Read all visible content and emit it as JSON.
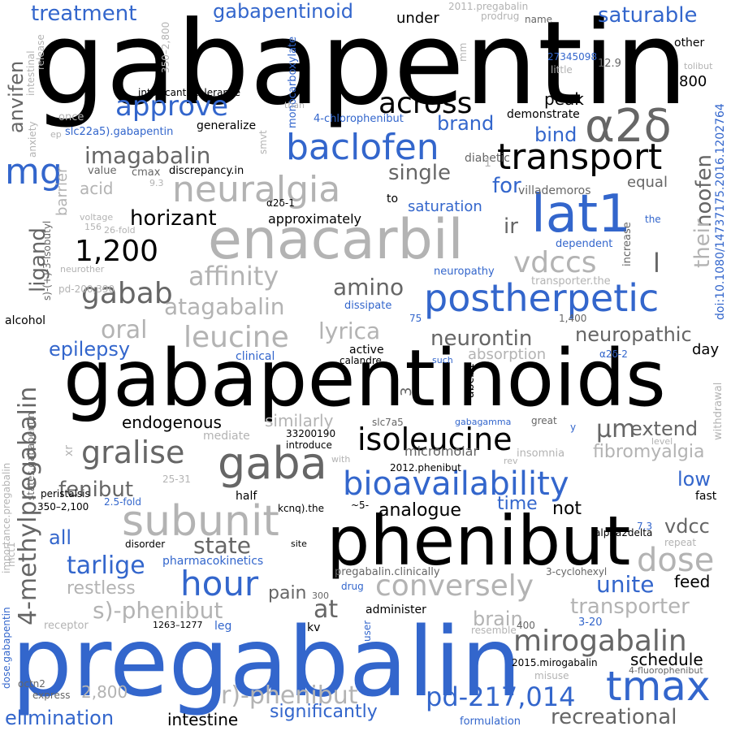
{
  "words": {
    "gabapentin": "gabapentin",
    "gabapentinoids": "gabapentinoids",
    "pregabalin": "pregabalin",
    "phenibut": "phenibut",
    "enacarbil": "enacarbil",
    "lat1": "lat1",
    "subunit": "subunit",
    "a2d": "α2δ",
    "baclofen": "baclofen",
    "transport": "transport",
    "neuralgia": "neuralgia",
    "postherpetic": "postherpetic",
    "bioavailability": "bioavailability",
    "tmax": "tmax",
    "gaba": "gaba",
    "hour": "hour",
    "isoleucine": "isoleucine",
    "mirogabalin": "mirogabalin",
    "dose": "dose",
    "gralise": "gralise",
    "conversely": "conversely",
    "pd217": "pd-217,014",
    "across": "across",
    "approve": "approve",
    "mg": "mg",
    "one200": "1,200",
    "vdccs": "vdccs",
    "gabab": "gabab",
    "leucine": "leucine",
    "affinity": "affinity",
    "atagabalin": "atagabalin",
    "imagabalin": "imagabalin",
    "horizant": "horizant",
    "lyrica": "lyrica",
    "oral": "oral",
    "neurontin": "neurontin",
    "neuropathic": "neuropathic",
    "amino": "amino",
    "fenibut": "fenibut",
    "tarlige": "tarlige",
    "state": "state",
    "sphenibut": "s)-phenibut",
    "rphenibut": "r)-phenibut",
    "transporter": "transporter",
    "unite": "unite",
    "recreational": "recreational",
    "elimination": "elimination",
    "significantly": "significantly",
    "intestine": "intestine",
    "treatment": "treatment",
    "gabapentinoid": "gabapentinoid",
    "saturable": "saturable",
    "brand": "brand",
    "bind": "bind",
    "single": "single",
    "for": "for",
    "ir": "ir",
    "l": "l",
    "epilepsy": "epilepsy",
    "endogenous": "endogenous",
    "um": "μm",
    "extend": "extend",
    "similarly": "similarly",
    "fibromyalgia": "fibromyalgia",
    "low": "low",
    "all": "all",
    "not": "not",
    "analogue": "analogue",
    "time": "time",
    "vdcc": "vdcc",
    "feed": "feed",
    "restless": "restless",
    "at": "at",
    "pain": "pain",
    "brain": "brain",
    "schedule": "schedule",
    "fourmethyl": "4-methylpregabalin",
    "ligand": "ligand",
    "anvifen": "anvifen",
    "noofen": "noofen",
    "their": "their",
    "acid": "acid",
    "barrier": "barrier",
    "micromolar": "micromolar",
    "twothousand": "2,800",
    "absorption": "absorption",
    "peak": "peak",
    "eighthundred": "800",
    "day": "day",
    "approximately": "approximately",
    "saturation": "saturation",
    "equal": "equal",
    "active": "active",
    "calandre": "calandre",
    "half": "half",
    "fast": "fast",
    "repeat": "repeat",
    "administer": "administer",
    "kv": "kv",
    "disorder": "disorder",
    "site": "site",
    "under": "under",
    "other": "other",
    "generalize": "generalize",
    "increase": "increase",
    "alcohol": "alcohol",
    "abcb1": "abcb1",
    "three": "3",
    "fourchloro": "4-chlorophenibut",
    "demonstrate": "demonstrate",
    "diabetic": "diabetic",
    "villademoros": "villademoros",
    "neuropathy": "neuropathy",
    "dependent": "dependent",
    "the1": "the",
    "dissipate": "dissipate",
    "clinical": "clinical",
    "such": "such",
    "a2d2": "α2δ-2",
    "a2d1": "α2δ-1",
    "gabagamma": "gabagamma",
    "great": "great",
    "y": "y",
    "slc7a5": "slc7a5",
    "introduce": "introduce",
    "n33200190": "33200190",
    "mediate": "mediate",
    "with": "with",
    "phenibut2012": "2012.phenibut",
    "insomnia": "insomnia",
    "rev": "rev",
    "level": "level",
    "withdrawal": "withdrawal",
    "alpha2delta": "alpha2delta",
    "seventhree": "7.3",
    "kcnq": "kcnq).the",
    "approx5": "~5-",
    "pharmacokinetics": "pharmacokinetics",
    "drug": "drug",
    "threecyclo": "3-cyclohexyl",
    "prega_clin": "pregabalin.clinically",
    "threehundred": "300",
    "leg": "leg",
    "user": "user",
    "resemble": "resemble",
    "fourhundred": "400",
    "threeto20": "3-20",
    "mirogabalin2015": "2015.mirogabalin",
    "fourfluoro": "4-fluorophenibut",
    "misuse": "misuse",
    "formulation": "formulation",
    "express": "express",
    "receptor": "receptor",
    "octn2": "octn2",
    "r1263": "1263–1277",
    "peristalsis": "peristalsis",
    "r350_2100": "350–2,100",
    "twofivefold": "2.5-fold",
    "r25_31": "25-31",
    "mct1": "mct1",
    "xr": "xr",
    "statesgaba": "states.gabapentin",
    "importanceprega": "importance.pregabalin",
    "dosegaba": "dose.gabapentin",
    "pd200": "pd-200,390",
    "neurother": "neurother",
    "voltage": "voltage",
    "one56": "156",
    "twentysixfold": "26-fold",
    "value": "value",
    "cmax": "cmax",
    "ninethree": "9.3",
    "discrepancy": "discrepancy.in",
    "intoxicants": "intoxicants.tolerance",
    "once": "once",
    "anxiety": "anxiety",
    "ep": "ep",
    "slc22a5": "slc22a5).gabapentin",
    "intestinal": "intestinal",
    "release": "release",
    "r350_2800": "350–2,800",
    "sisobutyl": "s)-(+)-3-isobutyl",
    "smvt": "smvt",
    "than": "than",
    "monocarboxylate": "monocarboxylate",
    "mm": "mm",
    "prodrug": "prodrug",
    "pregabalin2011": "2011.pregabalin",
    "name": "name",
    "n27345098": "27345098",
    "little": "little",
    "twelvenine": "12.9",
    "tolibut": "tolibut",
    "doi": "doi:10.1080/14737175.2016.1202764",
    "transporterthe": "transporter.the",
    "seventyfive": "75",
    "onefour": "1,400",
    "to": "to",
    "one": "1"
  }
}
